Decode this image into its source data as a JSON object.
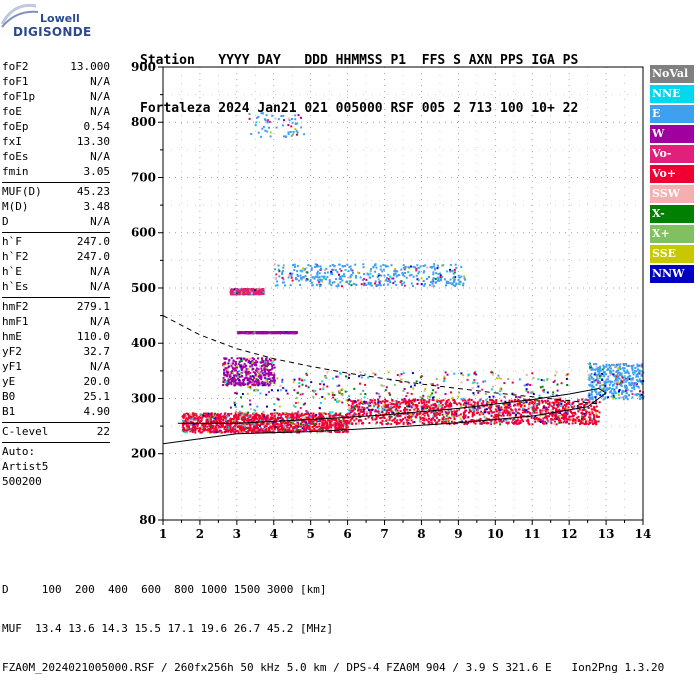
{
  "logo": {
    "line1": "Lowell",
    "line2": "DIGISONDE"
  },
  "header": {
    "line1": "Station   YYYY DAY   DDD HHMMSS P1  FFS S AXN PPS IGA PS",
    "line2": "Fortaleza 2024 Jan21 021 005000 RSF 005 2 713 100 10+ 22"
  },
  "params": {
    "group1": [
      {
        "k": "foF2",
        "v": "13.000"
      },
      {
        "k": "foF1",
        "v": "N/A"
      },
      {
        "k": "foF1p",
        "v": "N/A"
      },
      {
        "k": "foE",
        "v": "N/A"
      },
      {
        "k": "foEp",
        "v": "0.54"
      },
      {
        "k": "fxI",
        "v": "13.30"
      },
      {
        "k": "foEs",
        "v": "N/A"
      },
      {
        "k": "fmin",
        "v": "3.05"
      }
    ],
    "group2": [
      {
        "k": "MUF(D)",
        "v": "45.23"
      },
      {
        "k": "M(D)",
        "v": "3.48"
      },
      {
        "k": "D",
        "v": "N/A"
      }
    ],
    "group3": [
      {
        "k": "h`F",
        "v": "247.0"
      },
      {
        "k": "h`F2",
        "v": "247.0"
      },
      {
        "k": "h`E",
        "v": "N/A"
      },
      {
        "k": "h`Es",
        "v": "N/A"
      }
    ],
    "group4": [
      {
        "k": "hmF2",
        "v": "279.1"
      },
      {
        "k": "hmF1",
        "v": "N/A"
      },
      {
        "k": "hmE",
        "v": "110.0"
      },
      {
        "k": "yF2",
        "v": "32.7"
      },
      {
        "k": "yF1",
        "v": "N/A"
      },
      {
        "k": "yE",
        "v": "20.0"
      },
      {
        "k": "B0",
        "v": "25.1"
      },
      {
        "k": "B1",
        "v": "4.90"
      }
    ],
    "group5": [
      {
        "k": "C-level",
        "v": "22"
      }
    ],
    "auto": [
      "Auto:",
      "Artist5",
      "500200"
    ]
  },
  "legend": [
    {
      "label": "NoVal",
      "color": "#808080",
      "text": "#ffffff"
    },
    {
      "label": "NNE",
      "color": "#00d8f0",
      "text": "#ffffff"
    },
    {
      "label": "E",
      "color": "#40a0f0",
      "text": "#ffffff"
    },
    {
      "label": "W",
      "color": "#a000a0",
      "text": "#ffffff"
    },
    {
      "label": "Vo-",
      "color": "#e0207a",
      "text": "#ffffff"
    },
    {
      "label": "Vo+",
      "color": "#f00030",
      "text": "#ffffff"
    },
    {
      "label": "SSW",
      "color": "#f4b0b0",
      "text": "#ffffff"
    },
    {
      "label": "X-",
      "color": "#008000",
      "text": "#ffffff"
    },
    {
      "label": "X+",
      "color": "#80c060",
      "text": "#ffffff"
    },
    {
      "label": "SSE",
      "color": "#c8c800",
      "text": "#ffffff"
    },
    {
      "label": "NNW",
      "color": "#0000c0",
      "text": "#ffffff"
    }
  ],
  "bottom": {
    "line1": "D     100  200  400  600  800 1000 1500 3000 [km]",
    "line2": "MUF  13.4 13.6 14.3 15.5 17.1 19.6 26.7 45.2 [MHz]",
    "line3": "FZA0M_2024021005000.RSF / 260fx256h 50 kHz 5.0 km / DPS-4 FZA0M 904 / 3.9 S 321.6 E   Ion2Png 1.3.20"
  },
  "chart_data": {
    "type": "scatter",
    "xlim": [
      1,
      14
    ],
    "ylim": [
      80,
      900
    ],
    "x_ticks": [
      1,
      2,
      3,
      4,
      5,
      6,
      7,
      8,
      9,
      10,
      11,
      12,
      13,
      14
    ],
    "y_ticks": [
      80,
      200,
      300,
      400,
      500,
      600,
      700,
      800,
      900
    ],
    "grid": true,
    "trace_fit": [
      [
        1.4,
        255
      ],
      [
        3,
        255
      ],
      [
        5,
        262
      ],
      [
        7,
        270
      ],
      [
        9,
        282
      ],
      [
        11,
        298
      ],
      [
        12,
        308
      ],
      [
        12.8,
        318
      ],
      [
        13.0,
        310
      ],
      [
        12.5,
        285
      ],
      [
        11,
        268
      ],
      [
        9,
        256
      ],
      [
        7,
        247
      ],
      [
        5,
        240
      ],
      [
        3,
        236
      ],
      [
        1,
        218
      ]
    ],
    "dashed_curve": [
      [
        1,
        450
      ],
      [
        2,
        415
      ],
      [
        3,
        390
      ],
      [
        4,
        372
      ],
      [
        5,
        358
      ],
      [
        6,
        346
      ],
      [
        7,
        336
      ],
      [
        8,
        326
      ],
      [
        9,
        318
      ],
      [
        10,
        310
      ],
      [
        11,
        303
      ],
      [
        12,
        296
      ],
      [
        12.8,
        290
      ]
    ],
    "clusters": [
      {
        "x": [
          1.5,
          6.0
        ],
        "y": [
          240,
          275
        ],
        "mode": "Vo+",
        "density": "high"
      },
      {
        "x": [
          6.0,
          12.8
        ],
        "y": [
          255,
          300
        ],
        "mode": "Vo+",
        "density": "high"
      },
      {
        "x": [
          2.8,
          12.0
        ],
        "y": [
          275,
          350
        ],
        "mode": "mixed",
        "density": "medium"
      },
      {
        "x": [
          2.6,
          4.0
        ],
        "y": [
          325,
          375
        ],
        "mode": "W",
        "density": "medium"
      },
      {
        "x": [
          2.8,
          3.7
        ],
        "y": [
          490,
          500
        ],
        "mode": "Vo-",
        "density": "medium"
      },
      {
        "x": [
          3.0,
          4.6
        ],
        "y": [
          420,
          422
        ],
        "mode": "W",
        "density": "high"
      },
      {
        "x": [
          4.0,
          9.2
        ],
        "y": [
          505,
          545
        ],
        "mode": "E",
        "density": "medium"
      },
      {
        "x": [
          3.3,
          4.8
        ],
        "y": [
          775,
          820
        ],
        "mode": "E",
        "density": "low"
      },
      {
        "x": [
          12.5,
          14.0
        ],
        "y": [
          300,
          365
        ],
        "mode": "E",
        "density": "medium"
      }
    ]
  }
}
